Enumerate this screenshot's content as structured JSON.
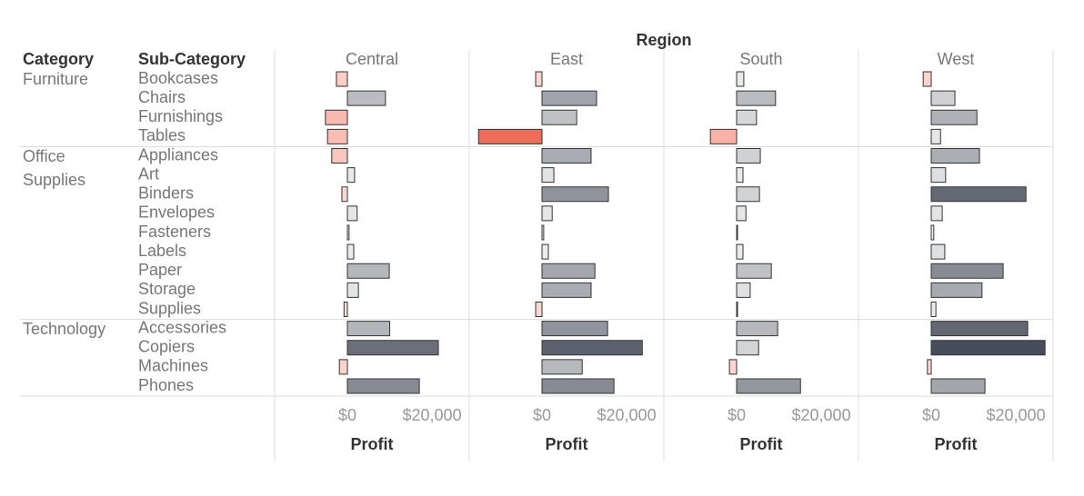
{
  "chart_data": {
    "type": "bar",
    "orientation": "horizontal",
    "title": "Region",
    "row_headers": [
      "Category",
      "Sub-Category"
    ],
    "xlabel": "Profit",
    "category_groups": [
      {
        "label": "Furniture",
        "categories": [
          "Bookcases",
          "Chairs",
          "Furnishings",
          "Tables"
        ]
      },
      {
        "label": "Office Supplies",
        "categories": [
          "Appliances",
          "Art",
          "Binders",
          "Envelopes",
          "Fasteners",
          "Labels",
          "Paper",
          "Storage",
          "Supplies"
        ]
      },
      {
        "label": "Technology",
        "categories": [
          "Accessories",
          "Copiers",
          "Machines",
          "Phones"
        ]
      }
    ],
    "series": [
      {
        "name": "Central",
        "values": [
          -2600,
          9000,
          -5200,
          -4700,
          -3700,
          1700,
          -1300,
          2300,
          400,
          1500,
          9900,
          2600,
          -800,
          10000,
          21500,
          -1900,
          17000
        ]
      },
      {
        "name": "East",
        "values": [
          -1500,
          12900,
          8200,
          -15000,
          11600,
          2800,
          15700,
          2400,
          400,
          1500,
          12500,
          11600,
          -1500,
          15500,
          23700,
          9500,
          17000
        ]
      },
      {
        "name": "South",
        "values": [
          1700,
          9200,
          4700,
          -6200,
          5600,
          1500,
          5400,
          2200,
          200,
          1500,
          8200,
          3200,
          200,
          9700,
          5200,
          -1700,
          15100
        ]
      },
      {
        "name": "West",
        "values": [
          -1900,
          5600,
          10800,
          2200,
          11400,
          3400,
          22400,
          2600,
          600,
          3200,
          17000,
          12000,
          1100,
          22800,
          26900,
          -900,
          12700
        ]
      }
    ],
    "xlim": [
      -17200,
      28800
    ],
    "xticks": [
      {
        "value": 0,
        "label": "$0"
      },
      {
        "value": 20000,
        "label": "$20,000"
      }
    ],
    "color_scale": {
      "negative": "#ee5a45",
      "negative_light": "#fde2de",
      "positive_light": "#f4f4f4",
      "positive": "#3b4250"
    }
  }
}
